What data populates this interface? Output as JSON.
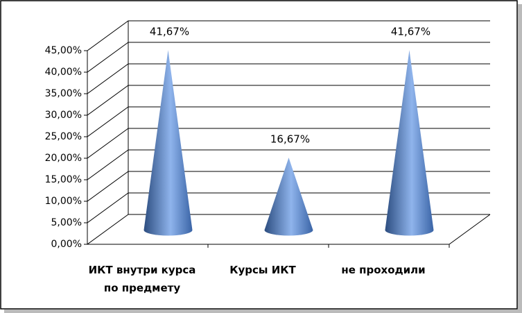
{
  "chart_data": {
    "type": "cone3d",
    "categories": [
      "ИКТ внутри курса по предмету",
      "Курсы ИКТ",
      "не проходили"
    ],
    "values": [
      41.67,
      16.67,
      41.67
    ],
    "value_labels": [
      "41,67%",
      "16,67%",
      "41,67%"
    ],
    "color": "#4f81bd",
    "ylim": [
      0,
      45
    ],
    "yticks": [
      {
        "value": 0,
        "label": "0,00%"
      },
      {
        "value": 5,
        "label": "5,00%"
      },
      {
        "value": 10,
        "label": "10,00%"
      },
      {
        "value": 15,
        "label": "15,00%"
      },
      {
        "value": 20,
        "label": "20,00%"
      },
      {
        "value": 25,
        "label": "25,00%"
      },
      {
        "value": 30,
        "label": "30,00%"
      },
      {
        "value": 35,
        "label": "35,00%"
      },
      {
        "value": 40,
        "label": "40,00%"
      },
      {
        "value": 45,
        "label": "45,00%"
      }
    ],
    "grid": true
  }
}
